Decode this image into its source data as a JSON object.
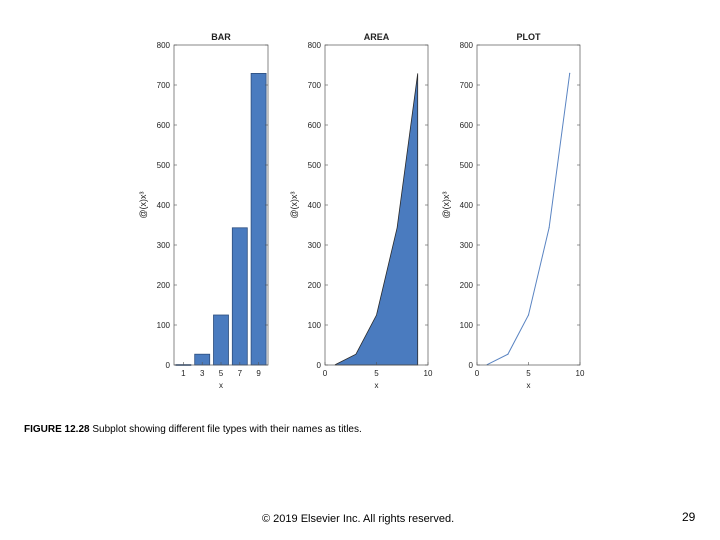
{
  "colors": {
    "fill": "#4a7bbf",
    "line": "#5a84c2",
    "axis": "#555555",
    "text": "#222222"
  },
  "chart_data": [
    {
      "type": "bar",
      "title": "BAR",
      "xlabel": "x",
      "ylabel": "@(x)x³",
      "x": [
        1,
        3,
        5,
        7,
        9
      ],
      "values": [
        1,
        27,
        125,
        343,
        729
      ],
      "xticks": [
        "1",
        "3",
        "5",
        "7",
        "9"
      ],
      "yticks": [
        "0",
        "100",
        "200",
        "300",
        "400",
        "500",
        "600",
        "700",
        "800"
      ],
      "ylim": [
        0,
        800
      ],
      "grid": false
    },
    {
      "type": "area",
      "title": "AREA",
      "xlabel": "x",
      "ylabel": "@(x)x³",
      "x": [
        1,
        3,
        5,
        7,
        9
      ],
      "values": [
        1,
        27,
        125,
        343,
        729
      ],
      "xlim": [
        0,
        10
      ],
      "xticks": [
        "0",
        "5",
        "10"
      ],
      "yticks": [
        "0",
        "100",
        "200",
        "300",
        "400",
        "500",
        "600",
        "700",
        "800"
      ],
      "ylim": [
        0,
        800
      ],
      "grid": false
    },
    {
      "type": "line",
      "title": "PLOT",
      "xlabel": "x",
      "ylabel": "@(x)x³",
      "x": [
        1,
        3,
        5,
        7,
        9
      ],
      "values": [
        1,
        27,
        125,
        343,
        729
      ],
      "xlim": [
        0,
        10
      ],
      "xticks": [
        "0",
        "5",
        "10"
      ],
      "yticks": [
        "0",
        "100",
        "200",
        "300",
        "400",
        "500",
        "600",
        "700",
        "800"
      ],
      "ylim": [
        0,
        800
      ],
      "grid": false
    }
  ],
  "caption": {
    "label": "FIGURE 12.28",
    "text": " Subplot showing different file types with their names as titles."
  },
  "footer": {
    "copyright": "© 2019 Elsevier Inc. All rights reserved.",
    "page_number": "29"
  }
}
